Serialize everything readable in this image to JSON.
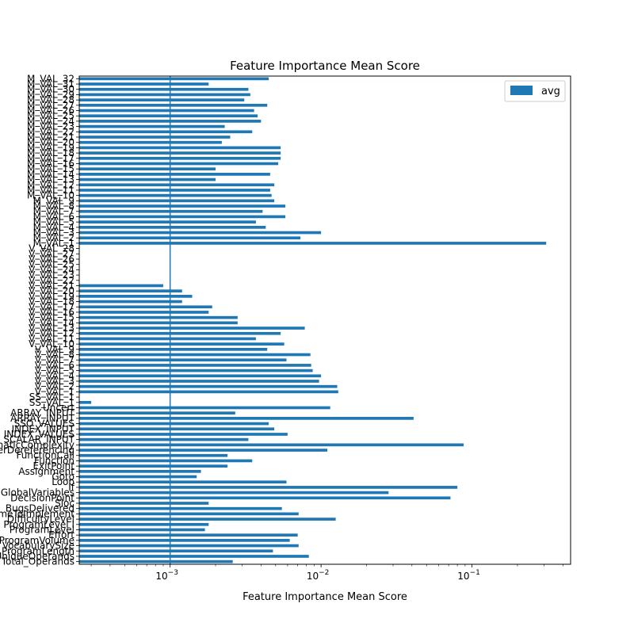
{
  "colors": {
    "bar": "#1f77b4",
    "refline": "#1f77b4"
  },
  "chart_data": {
    "type": "bar",
    "orientation": "horizontal",
    "title": "Feature Importance Mean Score",
    "xlabel": "Feature Importance Mean Score",
    "ylabel": "",
    "xscale": "log",
    "xlim": [
      0.00025,
      0.45
    ],
    "xticks": [
      {
        "value": 0.001,
        "base": "10",
        "exp": "−3"
      },
      {
        "value": 0.01,
        "base": "10",
        "exp": "−2"
      },
      {
        "value": 0.1,
        "base": "10",
        "exp": "−1"
      }
    ],
    "reference_line": 0.001,
    "grid": false,
    "legend": {
      "position": "top-right",
      "entries": [
        "avg"
      ]
    },
    "series": [
      {
        "name": "avg"
      }
    ],
    "categories": [
      "Total_Operands",
      "UniqueOperands",
      "ProgramLength",
      "VocabularySize",
      "ProgramVolume",
      "Effort",
      "ProgramLevel",
      "ProgramLevel I",
      "DifficultyLevel",
      "TimeToImplement",
      "BugsDelivered",
      "Sloc",
      "DecisionPoint",
      "GlobalVariables",
      "If",
      "Loop",
      "Goto",
      "Assignment",
      "ExitPoint",
      "Function",
      "FunctionCall",
      "PointerDereferencing",
      "CyclomaticComplexity",
      "SCALAR_INPUT",
      "INDEX_VALUES",
      "INDEX_INPUT",
      "SSO_VALUES",
      "ARRAY_INPUT",
      "ARRAY_INPUT",
      "Uncert",
      "SS_VAL_1",
      "SS_VAL_1",
      "V_VAL_1",
      "V_VAL_2",
      "V_VAL_3",
      "V_VAL_4",
      "V_VAL_5",
      "V_VAL_6",
      "V_VAL_7",
      "V_VAL_8",
      "V_VAL_9",
      "V_VAL_10",
      "V_VAL_11",
      "V_VAL_12",
      "V_VAL_13",
      "V_VAL_14",
      "V_VAL_15",
      "V_VAL_16",
      "V_VAL_17",
      "V_VAL_18",
      "V_VAL_19",
      "V_VAL_20",
      "V_VAL_21",
      "V_VAL_22",
      "V_VAL_23",
      "V_VAL_24",
      "V_VAL_25",
      "V_VAL_26",
      "V_VAL_27",
      "V_VAL_28",
      "M_VAL_1",
      "M_VAL_2",
      "M_VAL_3",
      "M_VAL_4",
      "M_VAL_5",
      "M_VAL_6",
      "M_VAL_7",
      "M_VAL_8",
      "M_VAL_9",
      "M_VAL_10",
      "M_VAL_11",
      "M_VAL_12",
      "M_VAL_13",
      "M_VAL_14",
      "M_VAL_15",
      "M_VAL_16",
      "M_VAL_17",
      "M_VAL_18",
      "M_VAL_19",
      "M_VAL_20",
      "M_VAL_21",
      "M_VAL_22",
      "M_VAL_23",
      "M_VAL_24",
      "M_VAL_25",
      "M_VAL_26",
      "M_VAL_27",
      "M_VAL_28",
      "M_VAL_29",
      "M_VAL_30",
      "M_VAL_31",
      "M_VAL_32"
    ],
    "values": [
      0.0026,
      0.0083,
      0.0048,
      0.0071,
      0.0062,
      0.007,
      0.0017,
      0.0018,
      0.0125,
      0.0071,
      0.0055,
      0.0018,
      0.072,
      0.028,
      0.08,
      0.0059,
      0.0015,
      0.0016,
      0.0024,
      0.0035,
      0.0024,
      0.011,
      0.088,
      0.0033,
      0.006,
      0.0049,
      0.0045,
      0.041,
      0.0027,
      0.0115,
      0.0003,
      0,
      0.013,
      0.0128,
      0.0097,
      0.01,
      0.0088,
      0.0086,
      0.0059,
      0.0085,
      0.0044,
      0.0057,
      0.0037,
      0.0054,
      0.0078,
      0.0028,
      0.0028,
      0.0018,
      0.0019,
      0.0012,
      0.0014,
      0.0012,
      0.0009,
      0,
      0,
      0,
      0,
      0,
      0,
      0,
      0.31,
      0.0073,
      0.01,
      0.0043,
      0.0037,
      0.0058,
      0.0041,
      0.0058,
      0.0049,
      0.0047,
      0.0046,
      0.0049,
      0.002,
      0.0046,
      0.002,
      0.0052,
      0.0054,
      0.0054,
      0.0054,
      0.0022,
      0.0025,
      0.0035,
      0.0023,
      0.004,
      0.0038,
      0.0036,
      0.0044,
      0.0031,
      0.0034,
      0.0033,
      0.0018,
      0.0045
    ]
  }
}
